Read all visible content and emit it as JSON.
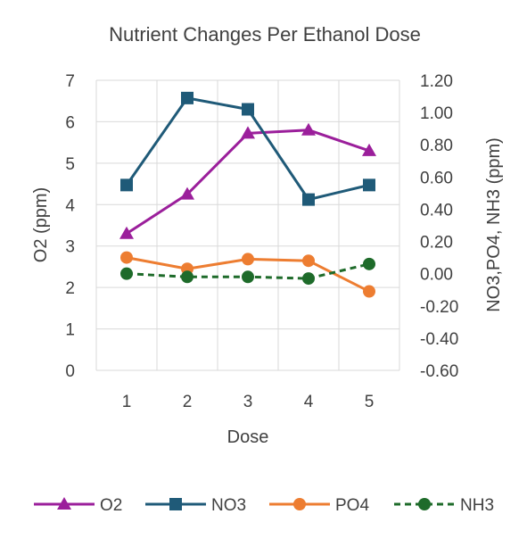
{
  "chart_data": {
    "type": "line",
    "title": "Nutrient Changes Per Ethanol Dose",
    "xlabel": "Dose",
    "ylabel": "O2 (ppm)",
    "y2label": "NO3,PO4, NH3 (ppm)",
    "categories": [
      "1",
      "2",
      "3",
      "4",
      "5"
    ],
    "ylim": [
      0,
      7
    ],
    "yticks": [
      "0",
      "1",
      "2",
      "3",
      "4",
      "5",
      "6",
      "7"
    ],
    "y2lim": [
      -0.6,
      1.2
    ],
    "y2ticks": [
      "-0.60",
      "-0.40",
      "-0.20",
      "0.00",
      "0.20",
      "0.40",
      "0.60",
      "0.80",
      "1.00",
      "1.20"
    ],
    "grid": true,
    "legend_position": "bottom",
    "series": [
      {
        "name": "O2",
        "axis": "left",
        "color": "#9B1F9B",
        "marker": "triangle",
        "dash": "solid",
        "values": [
          3.3,
          4.25,
          5.72,
          5.8,
          5.3
        ]
      },
      {
        "name": "NO3",
        "axis": "right",
        "color": "#1F5A78",
        "marker": "square",
        "dash": "solid",
        "values": [
          0.55,
          1.09,
          1.02,
          0.46,
          0.55
        ]
      },
      {
        "name": "PO4",
        "axis": "right",
        "color": "#ED7D31",
        "marker": "circle",
        "dash": "solid",
        "values": [
          0.1,
          0.03,
          0.09,
          0.08,
          -0.11
        ]
      },
      {
        "name": "NH3",
        "axis": "right",
        "color": "#1E6B2A",
        "marker": "circle",
        "dash": "dashed",
        "values": [
          0.0,
          -0.02,
          -0.02,
          -0.03,
          0.06
        ]
      }
    ]
  }
}
